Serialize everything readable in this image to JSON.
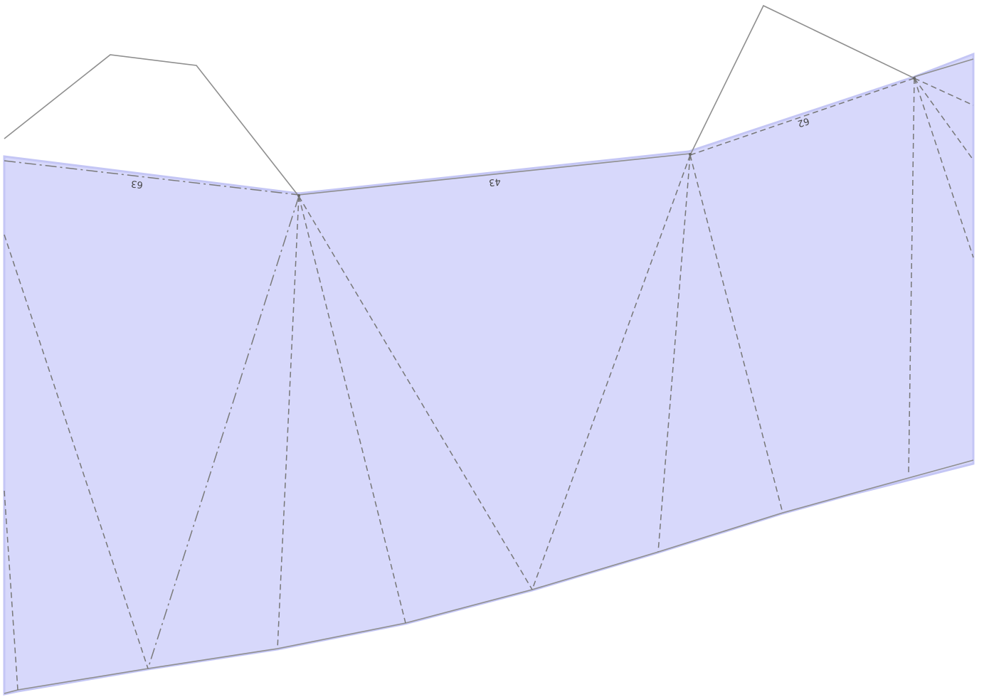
{
  "colors": {
    "face_fill": "#d7d8fb",
    "face_edge": "#c4c6f5",
    "cut_line": "#8a8a8a",
    "fold_line": "#777777"
  },
  "edge_labels": [
    {
      "text": "63"
    },
    {
      "text": "43"
    },
    {
      "text": "62"
    }
  ]
}
